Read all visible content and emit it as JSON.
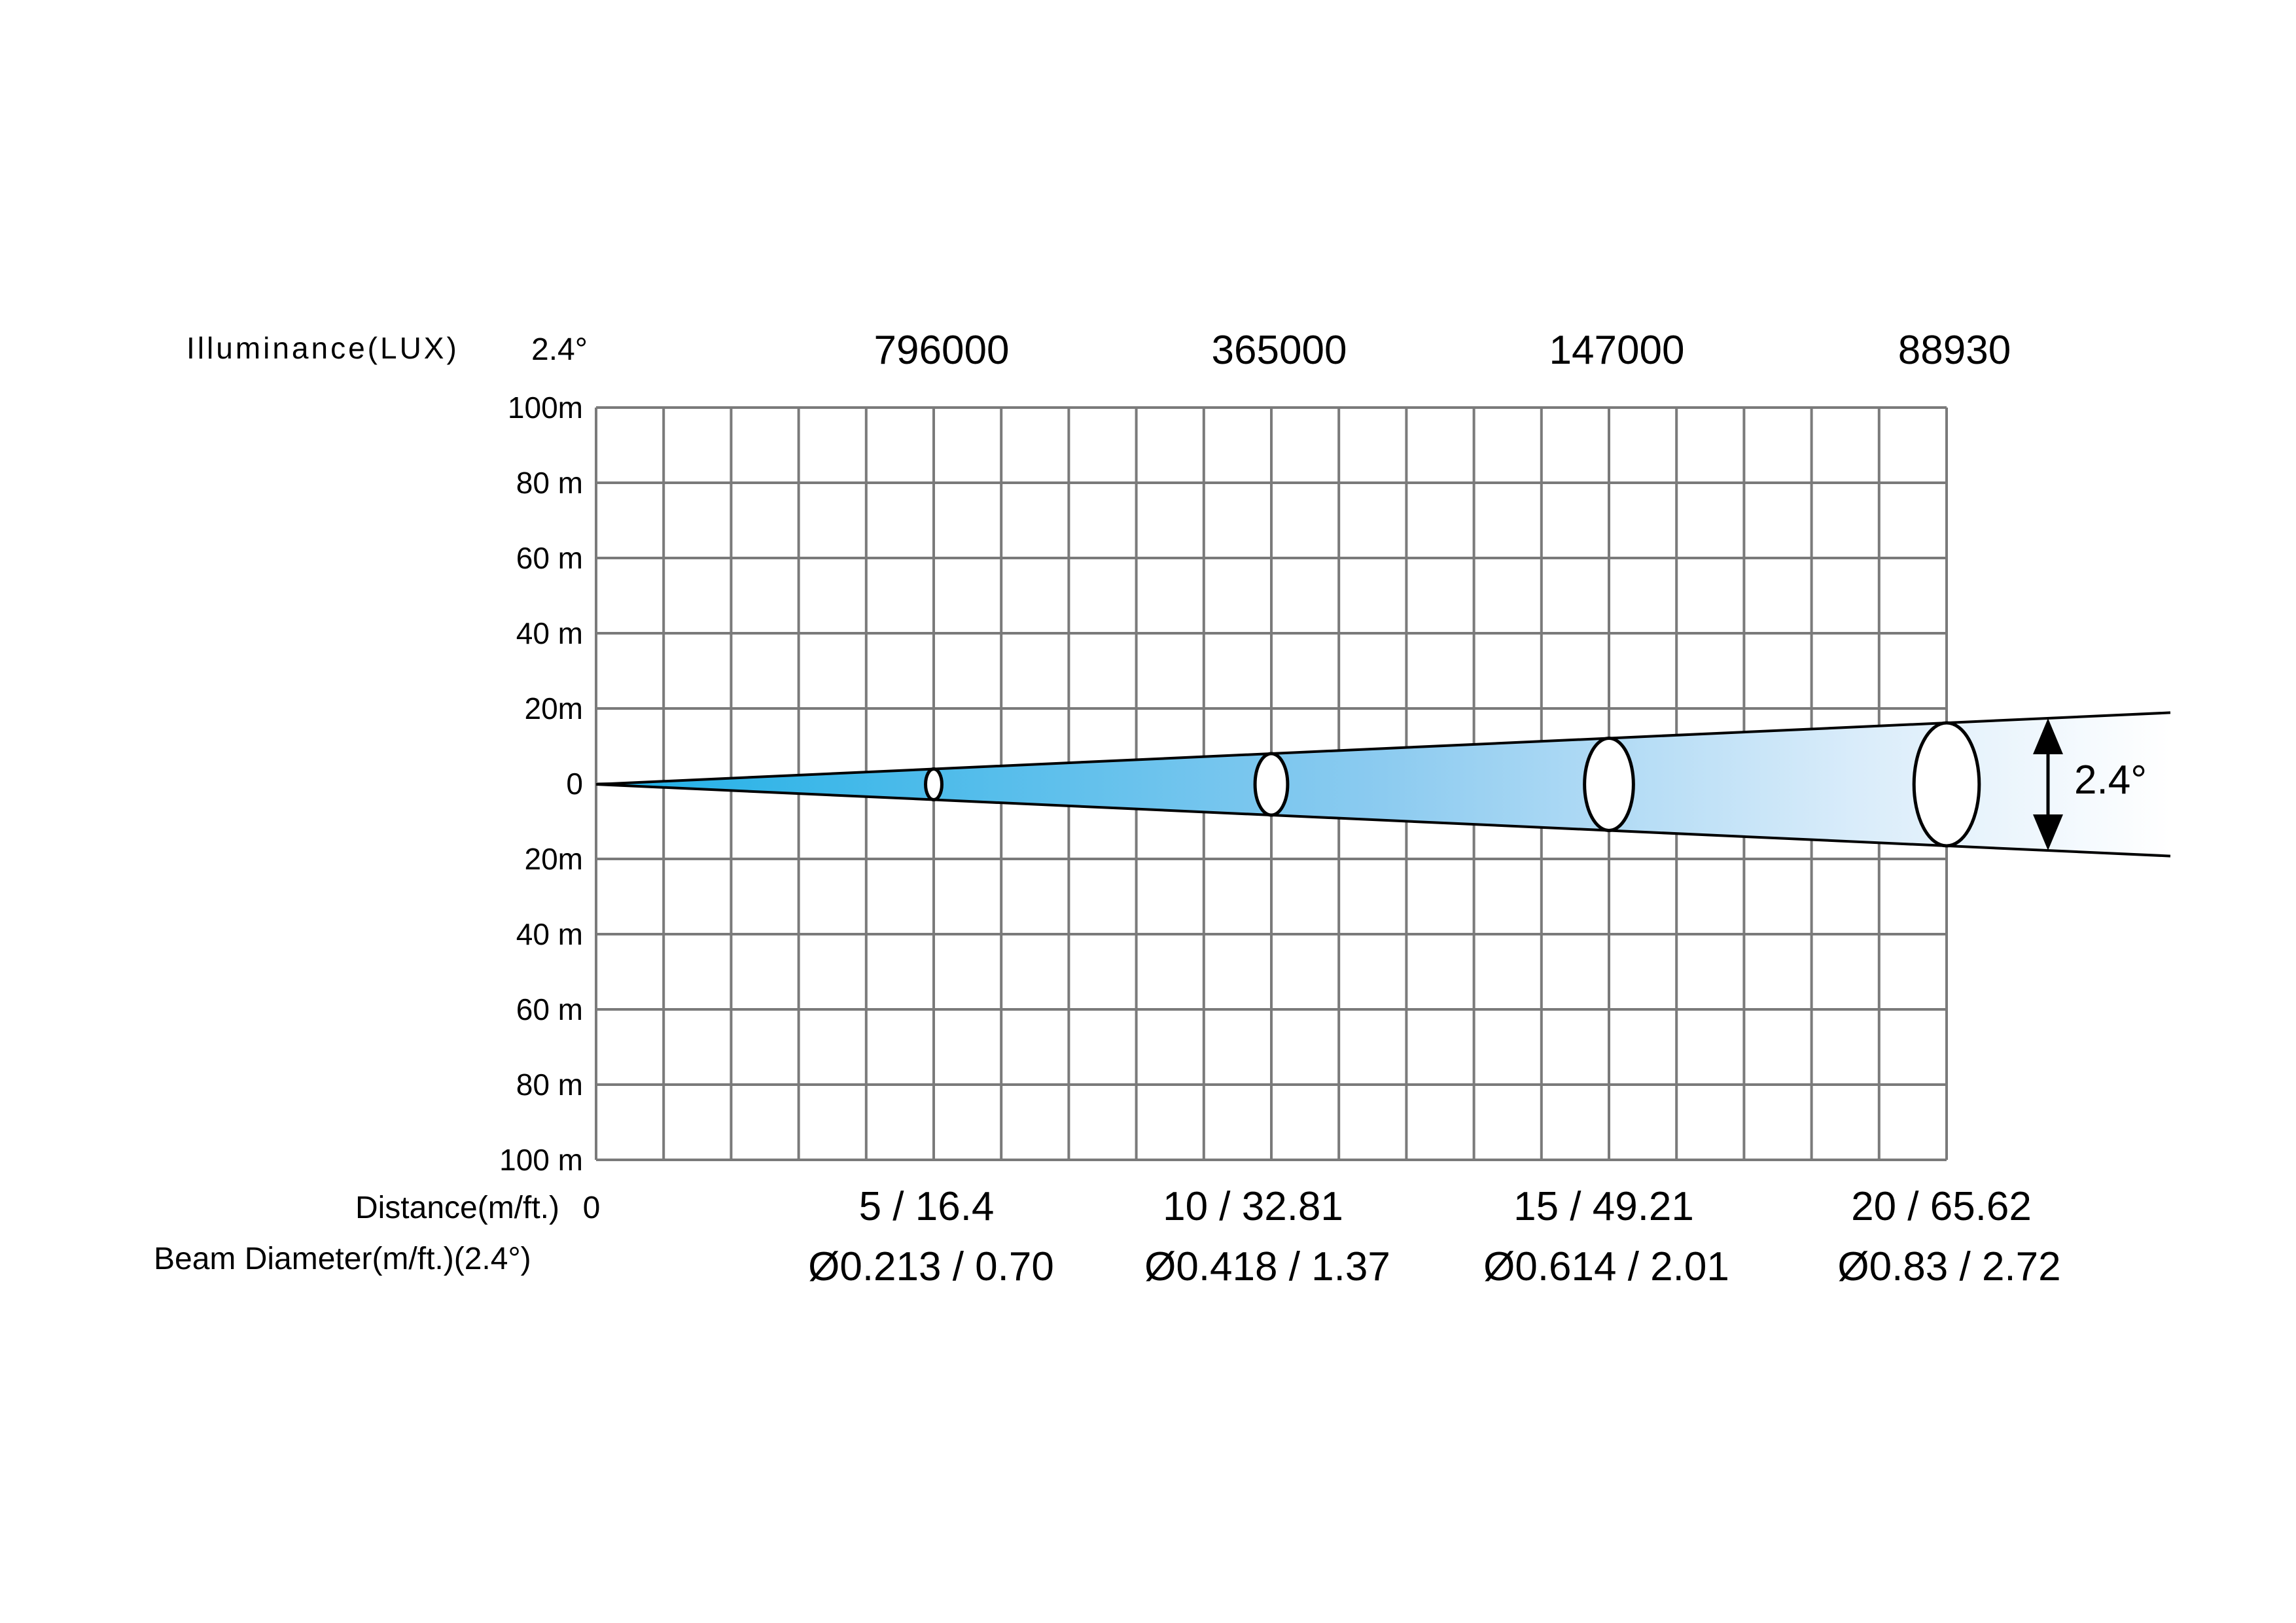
{
  "chart_data": {
    "type": "beam-diagram",
    "header_label": "Illuminance(LUX)",
    "beam_angle_label": "2.4°",
    "distance_label": "Distance(m/ft.)",
    "distance_zero": "0",
    "diameter_label": "Beam Diameter(m/ft.)(2.4°)",
    "y_ticks": [
      "100m",
      "80 m",
      "60 m",
      "40 m",
      "20m",
      "0",
      "20m",
      "40 m",
      "60 m",
      "80 m",
      "100 m"
    ],
    "grid": true,
    "x_grid_columns": 20,
    "beam_color_start": "#1fb0e6",
    "beam_color_end": "#ffffff",
    "points": [
      {
        "distance_m": 5,
        "lux": "796000",
        "distance_text": "5 / 16.4",
        "diameter_text": "Ø0.213 / 0.70"
      },
      {
        "distance_m": 10,
        "lux": "365000",
        "distance_text": "10 / 32.81",
        "diameter_text": "Ø0.418 / 1.37"
      },
      {
        "distance_m": 15,
        "lux": "147000",
        "distance_text": "15 / 49.21",
        "diameter_text": "Ø0.614 / 2.01"
      },
      {
        "distance_m": 20,
        "lux": "88930",
        "distance_text": "20 / 65.62",
        "diameter_text": "Ø0.83 / 2.72"
      }
    ]
  }
}
